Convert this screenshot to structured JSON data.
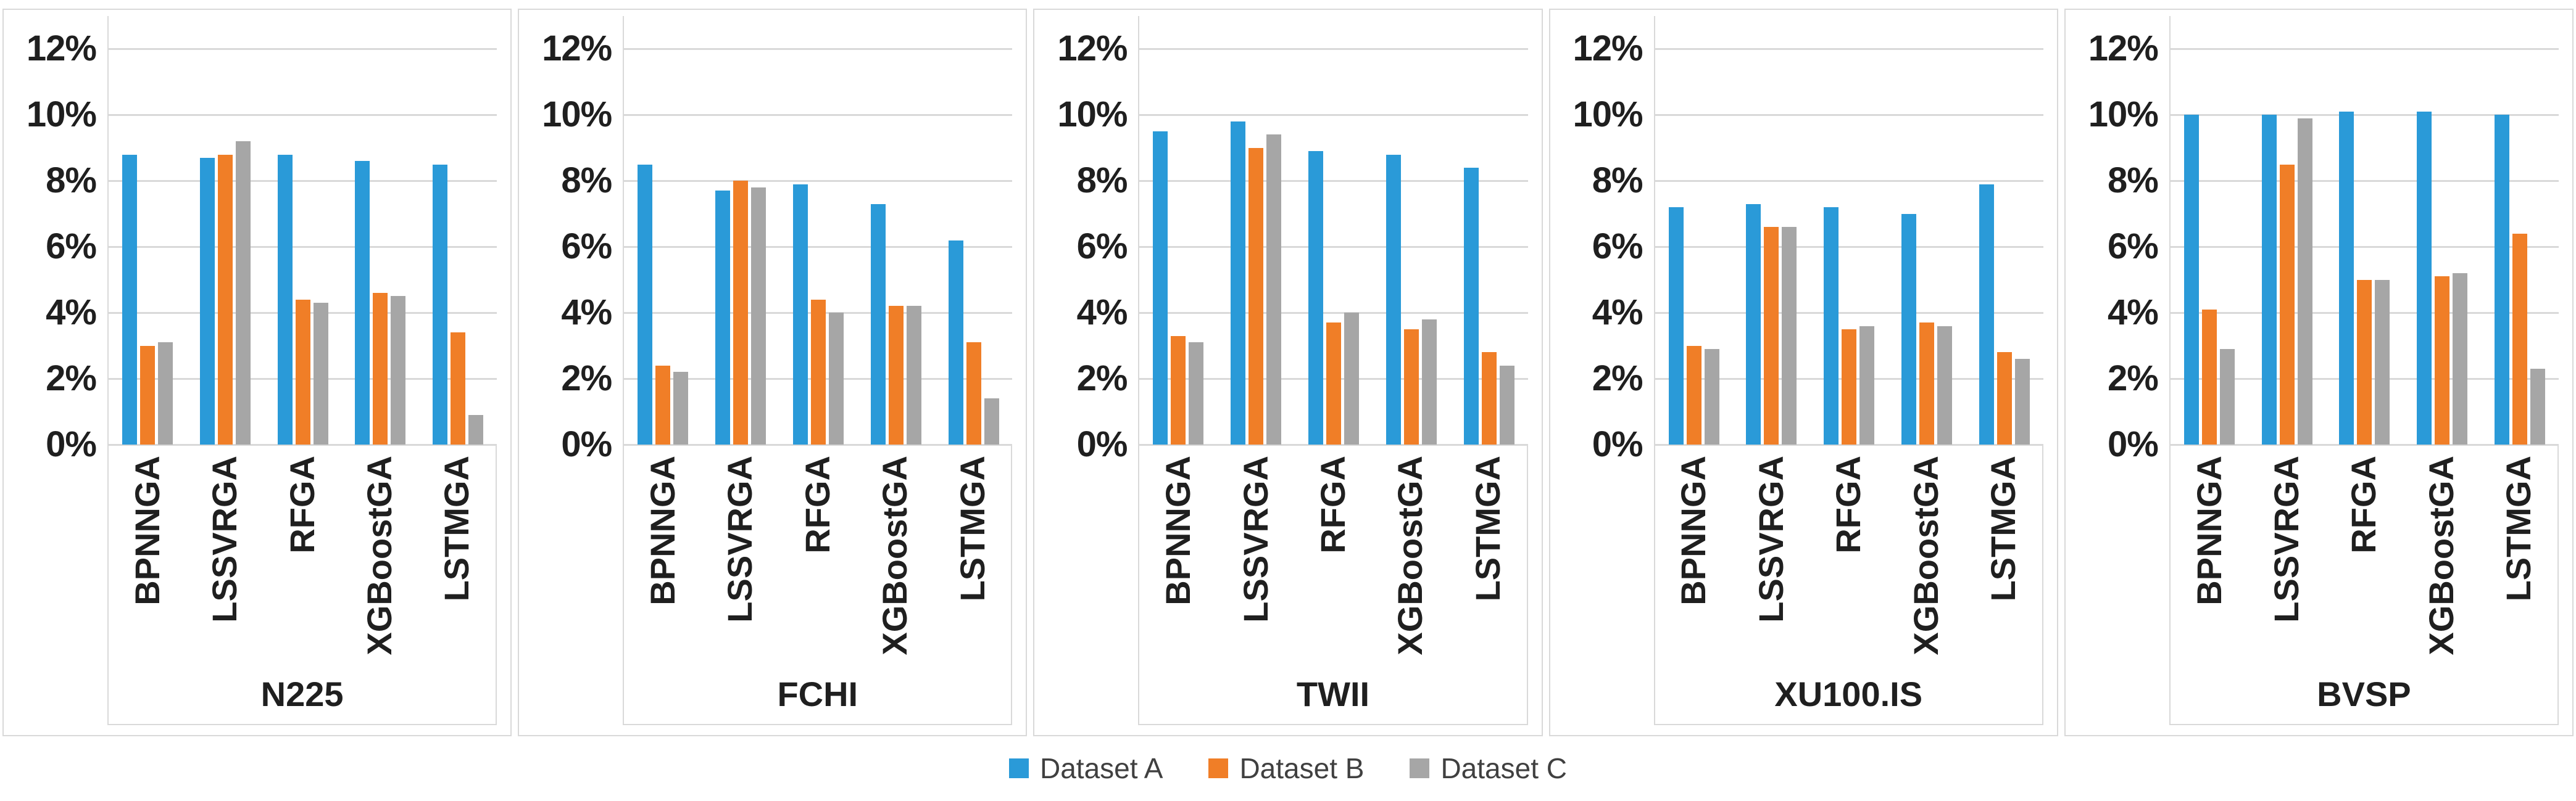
{
  "chart_data": {
    "type": "bar",
    "title": "",
    "ylabel": "",
    "xlabel": "",
    "ylim": [
      0,
      13
    ],
    "grid": true,
    "legend_position": "bottom-center",
    "yticks": [
      {
        "value": 12,
        "label": "12%"
      },
      {
        "value": 10,
        "label": "10%"
      },
      {
        "value": 8,
        "label": "8%"
      },
      {
        "value": 6,
        "label": "6%"
      },
      {
        "value": 4,
        "label": "4%"
      },
      {
        "value": 2,
        "label": "2%"
      },
      {
        "value": 0,
        "label": "0%"
      }
    ],
    "categories": [
      "BPNNGA",
      "LSSVRGA",
      "RFGA",
      "XGBoostGA",
      "LSTMGA"
    ],
    "colors": {
      "dataset_a": "#2A9AD8",
      "dataset_b": "#F07E27",
      "dataset_c": "#A6A6A6",
      "gridline": "#D9D9D9",
      "panel_border": "#D9D9D9",
      "axis_text": "#1F1F1F",
      "legend_text": "#404040"
    },
    "panels": [
      {
        "title": "N225",
        "series": [
          {
            "name": "Dataset A",
            "color": "#2A9AD8",
            "values": [
              8.8,
              8.7,
              8.8,
              8.6,
              8.5
            ]
          },
          {
            "name": "Dataset B",
            "color": "#F07E27",
            "values": [
              3.0,
              8.8,
              4.4,
              4.6,
              3.4
            ]
          },
          {
            "name": "Dataset C",
            "color": "#A6A6A6",
            "values": [
              3.1,
              9.2,
              4.3,
              4.5,
              0.9
            ]
          }
        ]
      },
      {
        "title": "FCHI",
        "series": [
          {
            "name": "Dataset A",
            "color": "#2A9AD8",
            "values": [
              8.5,
              7.7,
              7.9,
              7.3,
              6.2
            ]
          },
          {
            "name": "Dataset B",
            "color": "#F07E27",
            "values": [
              2.4,
              8.0,
              4.4,
              4.2,
              3.1
            ]
          },
          {
            "name": "Dataset C",
            "color": "#A6A6A6",
            "values": [
              2.2,
              7.8,
              4.0,
              4.2,
              1.4
            ]
          }
        ]
      },
      {
        "title": "TWII",
        "series": [
          {
            "name": "Dataset A",
            "color": "#2A9AD8",
            "values": [
              9.5,
              9.8,
              8.9,
              8.8,
              8.4
            ]
          },
          {
            "name": "Dataset B",
            "color": "#F07E27",
            "values": [
              3.3,
              9.0,
              3.7,
              3.5,
              2.8
            ]
          },
          {
            "name": "Dataset C",
            "color": "#A6A6A6",
            "values": [
              3.1,
              9.4,
              4.0,
              3.8,
              2.4
            ]
          }
        ]
      },
      {
        "title": "XU100.IS",
        "series": [
          {
            "name": "Dataset A",
            "color": "#2A9AD8",
            "values": [
              7.2,
              7.3,
              7.2,
              7.0,
              7.9
            ]
          },
          {
            "name": "Dataset B",
            "color": "#F07E27",
            "values": [
              3.0,
              6.6,
              3.5,
              3.7,
              2.8
            ]
          },
          {
            "name": "Dataset C",
            "color": "#A6A6A6",
            "values": [
              2.9,
              6.6,
              3.6,
              3.6,
              2.6
            ]
          }
        ]
      },
      {
        "title": "BVSP",
        "series": [
          {
            "name": "Dataset A",
            "color": "#2A9AD8",
            "values": [
              10.0,
              10.0,
              10.1,
              10.1,
              10.0
            ]
          },
          {
            "name": "Dataset B",
            "color": "#F07E27",
            "values": [
              4.1,
              8.5,
              5.0,
              5.1,
              6.4
            ]
          },
          {
            "name": "Dataset C",
            "color": "#A6A6A6",
            "values": [
              2.9,
              9.9,
              5.0,
              5.2,
              2.3
            ]
          }
        ]
      }
    ],
    "legend": [
      {
        "label": "Dataset A",
        "color": "#2A9AD8"
      },
      {
        "label": "Dataset B",
        "color": "#F07E27"
      },
      {
        "label": "Dataset C",
        "color": "#A6A6A6"
      }
    ]
  }
}
